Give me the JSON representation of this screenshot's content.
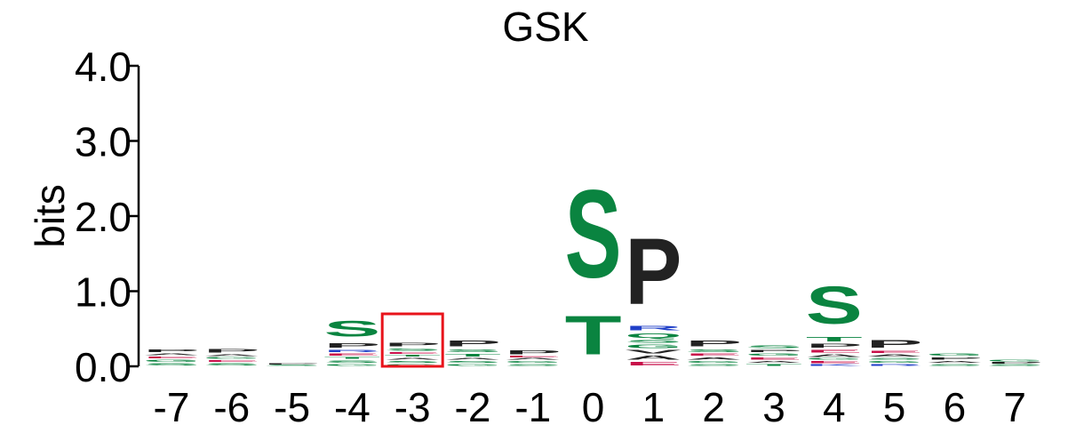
{
  "chart_data": {
    "type": "sequence-logo",
    "title": "GSK",
    "ylabel": "bits",
    "ylim": [
      0,
      4.0
    ],
    "yticks": [
      "0.0",
      "1.0",
      "2.0",
      "3.0",
      "4.0"
    ],
    "positions": [
      "-7",
      "-6",
      "-5",
      "-4",
      "-3",
      "-2",
      "-1",
      "0",
      "1",
      "2",
      "3",
      "4",
      "5",
      "6",
      "7"
    ],
    "highlight_position": "-3",
    "highlight_color": "#e8141b",
    "colors": {
      "S": "#0a8440",
      "T": "#0a8440",
      "G": "#0a8440",
      "N": "#0a8440",
      "Q": "#0a8440",
      "C": "#0a8440",
      "P": "#222222",
      "A": "#222222",
      "L": "#222222",
      "V": "#222222",
      "I": "#222222",
      "M": "#222222",
      "F": "#222222",
      "W": "#222222",
      "Y": "#222222",
      "R": "#1f3fc8",
      "K": "#1f3fc8",
      "H": "#1f3fc8",
      "D": "#c8104a",
      "E": "#c8104a"
    },
    "stacks": [
      [
        {
          "l": "S",
          "h": 0.05
        },
        {
          "l": "G",
          "h": 0.05
        },
        {
          "l": "E",
          "h": 0.04
        },
        {
          "l": "A",
          "h": 0.04
        },
        {
          "l": "P",
          "h": 0.06
        }
      ],
      [
        {
          "l": "S",
          "h": 0.05
        },
        {
          "l": "E",
          "h": 0.04
        },
        {
          "l": "G",
          "h": 0.04
        },
        {
          "l": "A",
          "h": 0.04
        },
        {
          "l": "P",
          "h": 0.07
        }
      ],
      [
        {
          "l": "S",
          "h": 0.02
        },
        {
          "l": "P",
          "h": 0.02
        }
      ],
      [
        {
          "l": "G",
          "h": 0.04
        },
        {
          "l": "S",
          "h": 0.05
        },
        {
          "l": "T",
          "h": 0.04
        },
        {
          "l": "E",
          "h": 0.05
        },
        {
          "l": "R",
          "h": 0.05
        },
        {
          "l": "P",
          "h": 0.1
        },
        {
          "l": "S",
          "h": 0.33
        }
      ],
      [
        {
          "l": "G",
          "h": 0.04
        },
        {
          "l": "S",
          "h": 0.04
        },
        {
          "l": "A",
          "h": 0.04
        },
        {
          "l": "T",
          "h": 0.04
        },
        {
          "l": "E",
          "h": 0.04
        },
        {
          "l": "S",
          "h": 0.05
        },
        {
          "l": "P",
          "h": 0.07
        }
      ],
      [
        {
          "l": "G",
          "h": 0.04
        },
        {
          "l": "S",
          "h": 0.04
        },
        {
          "l": "A",
          "h": 0.04
        },
        {
          "l": "T",
          "h": 0.06
        },
        {
          "l": "S",
          "h": 0.06
        },
        {
          "l": "P",
          "h": 0.12
        }
      ],
      [
        {
          "l": "S",
          "h": 0.04
        },
        {
          "l": "G",
          "h": 0.04
        },
        {
          "l": "A",
          "h": 0.03
        },
        {
          "l": "E",
          "h": 0.03
        },
        {
          "l": "P",
          "h": 0.09
        }
      ],
      [
        {
          "l": "T",
          "h": 0.82
        },
        {
          "l": "S",
          "h": 1.87
        }
      ],
      [
        {
          "l": "E",
          "h": 0.07
        },
        {
          "l": "A",
          "h": 0.09
        },
        {
          "l": "V",
          "h": 0.07
        },
        {
          "l": "G",
          "h": 0.07
        },
        {
          "l": "S",
          "h": 0.06
        },
        {
          "l": "Q",
          "h": 0.1
        },
        {
          "l": "R",
          "h": 0.1
        },
        {
          "l": "P",
          "h": 1.4
        }
      ],
      [
        {
          "l": "S",
          "h": 0.04
        },
        {
          "l": "G",
          "h": 0.04
        },
        {
          "l": "A",
          "h": 0.05
        },
        {
          "l": "E",
          "h": 0.05
        },
        {
          "l": "S",
          "h": 0.06
        },
        {
          "l": "P",
          "h": 0.12
        }
      ],
      [
        {
          "l": "T",
          "h": 0.04
        },
        {
          "l": "A",
          "h": 0.04
        },
        {
          "l": "E",
          "h": 0.05
        },
        {
          "l": "G",
          "h": 0.05
        },
        {
          "l": "P",
          "h": 0.05
        },
        {
          "l": "S",
          "h": 0.06
        }
      ],
      [
        {
          "l": "K",
          "h": 0.03
        },
        {
          "l": "E",
          "h": 0.05
        },
        {
          "l": "G",
          "h": 0.03
        },
        {
          "l": "A",
          "h": 0.06
        },
        {
          "l": "E",
          "h": 0.06
        },
        {
          "l": "P",
          "h": 0.08
        },
        {
          "l": "T",
          "h": 0.1
        },
        {
          "l": "S",
          "h": 0.8
        }
      ],
      [
        {
          "l": "R",
          "h": 0.04
        },
        {
          "l": "G",
          "h": 0.04
        },
        {
          "l": "S",
          "h": 0.04
        },
        {
          "l": "A",
          "h": 0.05
        },
        {
          "l": "E",
          "h": 0.05
        },
        {
          "l": "P",
          "h": 0.16
        }
      ],
      [
        {
          "l": "S",
          "h": 0.04
        },
        {
          "l": "A",
          "h": 0.04
        },
        {
          "l": "P",
          "h": 0.05
        },
        {
          "l": "G",
          "h": 0.05
        }
      ],
      [
        {
          "l": "S",
          "h": 0.03
        },
        {
          "l": "P",
          "h": 0.03
        },
        {
          "l": "G",
          "h": 0.03
        }
      ]
    ]
  }
}
